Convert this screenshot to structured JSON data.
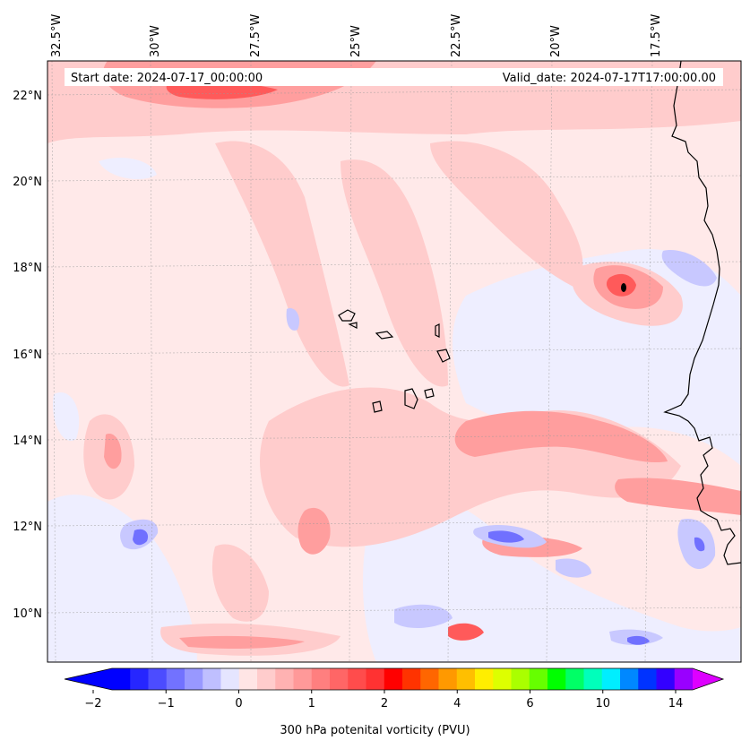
{
  "header": {
    "start_date": "Start date: 2024-07-17_00:00:00",
    "valid_date": "Valid_date: 2024-07-17T17:00:00.00"
  },
  "axes": {
    "lon_labels": [
      "32.5°W",
      "30°W",
      "27.5°W",
      "25°W",
      "22.5°W",
      "20°W",
      "17.5°W"
    ],
    "lat_labels": [
      "22°N",
      "20°N",
      "18°N",
      "16°N",
      "14°N",
      "12°N",
      "10°N"
    ]
  },
  "colorbar": {
    "label": "300 hPa potenital vorticity (PVU)",
    "ticks": [
      "−2",
      "−1",
      "0",
      "1",
      "2",
      "4",
      "6",
      "10",
      "14"
    ],
    "colors": [
      "#0000ff",
      "#2626ff",
      "#4c4cff",
      "#7272ff",
      "#9898ff",
      "#bfbfff",
      "#e5e5ff",
      "#ffe5e5",
      "#ffcccc",
      "#ffb2b2",
      "#ff9999",
      "#ff7f7f",
      "#ff6666",
      "#ff4c4c",
      "#ff3232",
      "#ff0000",
      "#ff3300",
      "#ff6600",
      "#ff9900",
      "#ffbf00",
      "#ffee00",
      "#ddff00",
      "#aaff00",
      "#66ff00",
      "#00ff00",
      "#00ff66",
      "#00ffbb",
      "#00eeff",
      "#0088ff",
      "#0033ff",
      "#3300ff",
      "#9900ff"
    ],
    "extend_low": "#0000ff",
    "extend_high": "#dd00ff"
  },
  "map_colors": {
    "background": "#ffe9e9",
    "blue_light": "#eeeeff",
    "blue_mid": "#c8c8ff",
    "blue_strong": "#7070ff",
    "red_light": "#ffcccc",
    "red_mid": "#ff9e9e",
    "red_strong": "#ff5a5a",
    "coast": "#000000"
  }
}
